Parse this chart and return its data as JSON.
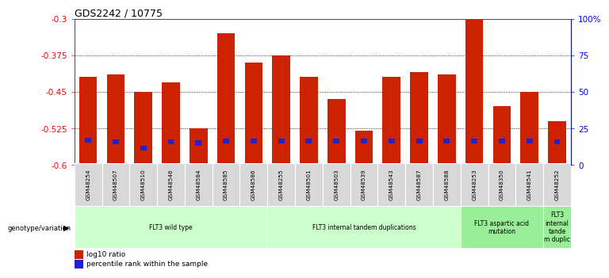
{
  "title": "GDS2242 / 10775",
  "samples": [
    "GSM48254",
    "GSM48507",
    "GSM48510",
    "GSM48546",
    "GSM48584",
    "GSM48585",
    "GSM48586",
    "GSM48255",
    "GSM48501",
    "GSM48503",
    "GSM48539",
    "GSM48543",
    "GSM48587",
    "GSM48588",
    "GSM48253",
    "GSM48350",
    "GSM48541",
    "GSM48252"
  ],
  "log10_ratio": [
    -0.42,
    -0.415,
    -0.45,
    -0.43,
    -0.525,
    -0.33,
    -0.39,
    -0.375,
    -0.42,
    -0.465,
    -0.53,
    -0.42,
    -0.41,
    -0.415,
    -0.3,
    -0.48,
    -0.45,
    -0.51
  ],
  "blue_bar_y": [
    -0.555,
    -0.558,
    -0.57,
    -0.558,
    -0.56,
    -0.556,
    -0.556,
    -0.556,
    -0.556,
    -0.556,
    -0.556,
    -0.556,
    -0.556,
    -0.556,
    -0.556,
    -0.556,
    -0.556,
    -0.558
  ],
  "blue_bar_height": [
    0.01,
    0.01,
    0.01,
    0.01,
    0.01,
    0.01,
    0.01,
    0.01,
    0.01,
    0.01,
    0.01,
    0.01,
    0.01,
    0.01,
    0.01,
    0.01,
    0.01,
    0.01
  ],
  "ylim": [
    -0.6,
    -0.3
  ],
  "yticks": [
    -0.6,
    -0.525,
    -0.45,
    -0.375,
    -0.3
  ],
  "ytick_labels": [
    "-0.6",
    "-0.525",
    "-0.45",
    "-0.375",
    "-0.3"
  ],
  "right_ytick_pct": [
    0,
    25,
    50,
    75,
    100
  ],
  "right_ytick_labels": [
    "0",
    "25",
    "50",
    "75",
    "100%"
  ],
  "bar_color": "#cc2200",
  "blue_color": "#2222cc",
  "groups": [
    {
      "label": "FLT3 wild type",
      "start": 0,
      "end": 6,
      "color": "#ccffcc"
    },
    {
      "label": "FLT3 internal tandem duplications",
      "start": 7,
      "end": 13,
      "color": "#ccffcc"
    },
    {
      "label": "FLT3 aspartic acid\nmutation",
      "start": 14,
      "end": 16,
      "color": "#99ee99"
    },
    {
      "label": "FLT3\ninternal\ntande\nm duplic",
      "start": 17,
      "end": 17,
      "color": "#99ee99"
    }
  ],
  "legend_items": [
    {
      "label": "log10 ratio",
      "color": "#cc2200"
    },
    {
      "label": "percentile rank within the sample",
      "color": "#2222cc"
    }
  ],
  "genotype_label": "genotype/variation"
}
